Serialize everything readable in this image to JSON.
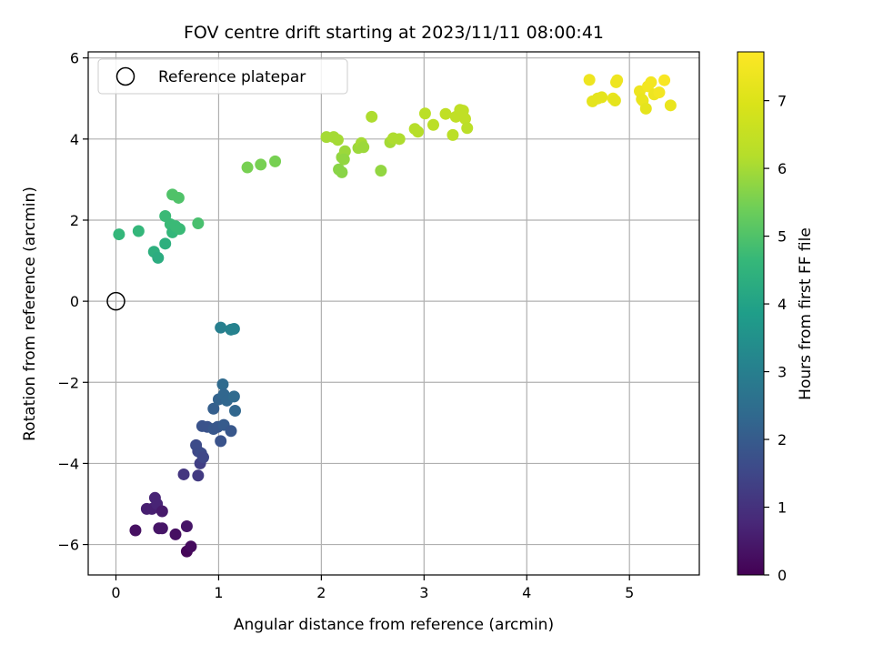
{
  "chart_data": {
    "type": "scatter",
    "title": "FOV centre drift starting at 2023/11/11 08:00:41",
    "xlabel": "Angular distance from reference (arcmin)",
    "ylabel": "Rotation from reference (arcmin)",
    "xlim": [
      -0.27,
      5.68
    ],
    "ylim": [
      -6.75,
      6.15
    ],
    "xticks": [
      0,
      1,
      2,
      3,
      4,
      5
    ],
    "yticks": [
      -6,
      -4,
      -2,
      0,
      2,
      4,
      6
    ],
    "grid": true,
    "legend": {
      "placement": "top-left",
      "entries": [
        "Reference platepar"
      ]
    },
    "reference_point": {
      "x": 0,
      "y": 0
    },
    "colorbar": {
      "label": "Hours from first FF file",
      "colormap": "viridis",
      "range": [
        0,
        7.72
      ],
      "ticks": [
        0,
        1,
        2,
        3,
        4,
        5,
        6,
        7
      ]
    },
    "points": [
      {
        "x": 0.19,
        "y": -5.65,
        "t": 0.3
      },
      {
        "x": 0.3,
        "y": -5.12,
        "t": 0.6
      },
      {
        "x": 0.35,
        "y": -5.12,
        "t": 0.6
      },
      {
        "x": 0.38,
        "y": -4.85,
        "t": 0.7
      },
      {
        "x": 0.4,
        "y": -5.0,
        "t": 0.7
      },
      {
        "x": 0.42,
        "y": -5.6,
        "t": 0.4
      },
      {
        "x": 0.45,
        "y": -5.6,
        "t": 0.4
      },
      {
        "x": 0.45,
        "y": -5.18,
        "t": 0.5
      },
      {
        "x": 0.58,
        "y": -5.75,
        "t": 0.3
      },
      {
        "x": 0.69,
        "y": -5.55,
        "t": 0.4
      },
      {
        "x": 0.69,
        "y": -6.17,
        "t": 0.1
      },
      {
        "x": 0.73,
        "y": -6.05,
        "t": 0.2
      },
      {
        "x": 0.66,
        "y": -4.27,
        "t": 1.1
      },
      {
        "x": 0.8,
        "y": -4.3,
        "t": 1.2
      },
      {
        "x": 0.82,
        "y": -4.0,
        "t": 1.3
      },
      {
        "x": 0.8,
        "y": -3.7,
        "t": 1.5
      },
      {
        "x": 0.78,
        "y": -3.55,
        "t": 1.6
      },
      {
        "x": 0.83,
        "y": -3.75,
        "t": 1.6
      },
      {
        "x": 0.85,
        "y": -3.85,
        "t": 1.5
      },
      {
        "x": 0.84,
        "y": -3.08,
        "t": 1.8
      },
      {
        "x": 0.89,
        "y": -3.1,
        "t": 1.8
      },
      {
        "x": 0.95,
        "y": -3.15,
        "t": 1.9
      },
      {
        "x": 0.99,
        "y": -3.1,
        "t": 1.9
      },
      {
        "x": 1.02,
        "y": -3.45,
        "t": 1.8
      },
      {
        "x": 1.05,
        "y": -3.05,
        "t": 2.0
      },
      {
        "x": 1.12,
        "y": -3.2,
        "t": 1.9
      },
      {
        "x": 0.95,
        "y": -2.65,
        "t": 2.1
      },
      {
        "x": 1.0,
        "y": -2.42,
        "t": 2.2
      },
      {
        "x": 1.04,
        "y": -2.05,
        "t": 2.4
      },
      {
        "x": 1.05,
        "y": -2.3,
        "t": 2.3
      },
      {
        "x": 1.08,
        "y": -2.45,
        "t": 2.3
      },
      {
        "x": 1.15,
        "y": -2.35,
        "t": 2.4
      },
      {
        "x": 1.16,
        "y": -2.7,
        "t": 2.3
      },
      {
        "x": 1.02,
        "y": -0.65,
        "t": 3.0
      },
      {
        "x": 1.12,
        "y": -0.7,
        "t": 3.1
      },
      {
        "x": 1.15,
        "y": -0.68,
        "t": 3.1
      },
      {
        "x": 0.03,
        "y": 1.65,
        "t": 4.6
      },
      {
        "x": 0.22,
        "y": 1.73,
        "t": 4.6
      },
      {
        "x": 0.37,
        "y": 1.22,
        "t": 4.4
      },
      {
        "x": 0.41,
        "y": 1.07,
        "t": 4.3
      },
      {
        "x": 0.48,
        "y": 1.42,
        "t": 4.4
      },
      {
        "x": 0.48,
        "y": 2.1,
        "t": 4.7
      },
      {
        "x": 0.53,
        "y": 1.9,
        "t": 4.7
      },
      {
        "x": 0.55,
        "y": 1.7,
        "t": 4.6
      },
      {
        "x": 0.58,
        "y": 1.85,
        "t": 4.7
      },
      {
        "x": 0.62,
        "y": 1.78,
        "t": 4.7
      },
      {
        "x": 0.55,
        "y": 2.63,
        "t": 5.0
      },
      {
        "x": 0.61,
        "y": 2.55,
        "t": 5.0
      },
      {
        "x": 0.8,
        "y": 1.92,
        "t": 4.9
      },
      {
        "x": 1.28,
        "y": 3.3,
        "t": 5.5
      },
      {
        "x": 1.41,
        "y": 3.37,
        "t": 5.5
      },
      {
        "x": 1.55,
        "y": 3.45,
        "t": 5.5
      },
      {
        "x": 2.05,
        "y": 4.05,
        "t": 6.0
      },
      {
        "x": 2.12,
        "y": 4.05,
        "t": 6.0
      },
      {
        "x": 2.16,
        "y": 3.98,
        "t": 6.0
      },
      {
        "x": 2.17,
        "y": 3.25,
        "t": 5.7
      },
      {
        "x": 2.2,
        "y": 3.18,
        "t": 5.7
      },
      {
        "x": 2.2,
        "y": 3.55,
        "t": 5.8
      },
      {
        "x": 2.23,
        "y": 3.7,
        "t": 5.9
      },
      {
        "x": 2.22,
        "y": 3.5,
        "t": 5.8
      },
      {
        "x": 2.36,
        "y": 3.78,
        "t": 5.9
      },
      {
        "x": 2.39,
        "y": 3.9,
        "t": 6.0
      },
      {
        "x": 2.41,
        "y": 3.8,
        "t": 5.9
      },
      {
        "x": 2.49,
        "y": 4.55,
        "t": 6.1
      },
      {
        "x": 2.58,
        "y": 3.22,
        "t": 5.8
      },
      {
        "x": 2.67,
        "y": 3.92,
        "t": 6.0
      },
      {
        "x": 2.7,
        "y": 4.02,
        "t": 6.1
      },
      {
        "x": 2.76,
        "y": 4.0,
        "t": 6.1
      },
      {
        "x": 2.91,
        "y": 4.25,
        "t": 6.2
      },
      {
        "x": 2.94,
        "y": 4.18,
        "t": 6.2
      },
      {
        "x": 3.01,
        "y": 4.63,
        "t": 6.3
      },
      {
        "x": 3.09,
        "y": 4.35,
        "t": 6.3
      },
      {
        "x": 3.21,
        "y": 4.62,
        "t": 6.4
      },
      {
        "x": 3.28,
        "y": 4.1,
        "t": 6.3
      },
      {
        "x": 3.31,
        "y": 4.55,
        "t": 6.4
      },
      {
        "x": 3.35,
        "y": 4.72,
        "t": 6.4
      },
      {
        "x": 3.38,
        "y": 4.7,
        "t": 6.4
      },
      {
        "x": 3.4,
        "y": 4.5,
        "t": 6.4
      },
      {
        "x": 3.42,
        "y": 4.27,
        "t": 6.3
      },
      {
        "x": 4.61,
        "y": 5.46,
        "t": 7.4
      },
      {
        "x": 4.64,
        "y": 4.93,
        "t": 7.2
      },
      {
        "x": 4.69,
        "y": 5.0,
        "t": 7.2
      },
      {
        "x": 4.73,
        "y": 5.03,
        "t": 7.2
      },
      {
        "x": 4.84,
        "y": 5.0,
        "t": 7.3
      },
      {
        "x": 4.86,
        "y": 4.95,
        "t": 7.2
      },
      {
        "x": 4.87,
        "y": 5.4,
        "t": 7.4
      },
      {
        "x": 4.88,
        "y": 5.45,
        "t": 7.4
      },
      {
        "x": 5.1,
        "y": 5.18,
        "t": 7.4
      },
      {
        "x": 5.12,
        "y": 4.98,
        "t": 7.3
      },
      {
        "x": 5.13,
        "y": 4.95,
        "t": 7.3
      },
      {
        "x": 5.16,
        "y": 4.75,
        "t": 7.2
      },
      {
        "x": 5.18,
        "y": 5.3,
        "t": 7.5
      },
      {
        "x": 5.21,
        "y": 5.4,
        "t": 7.5
      },
      {
        "x": 5.24,
        "y": 5.1,
        "t": 7.4
      },
      {
        "x": 5.29,
        "y": 5.15,
        "t": 7.5
      },
      {
        "x": 5.34,
        "y": 5.45,
        "t": 7.6
      },
      {
        "x": 5.4,
        "y": 4.83,
        "t": 7.3
      }
    ]
  }
}
